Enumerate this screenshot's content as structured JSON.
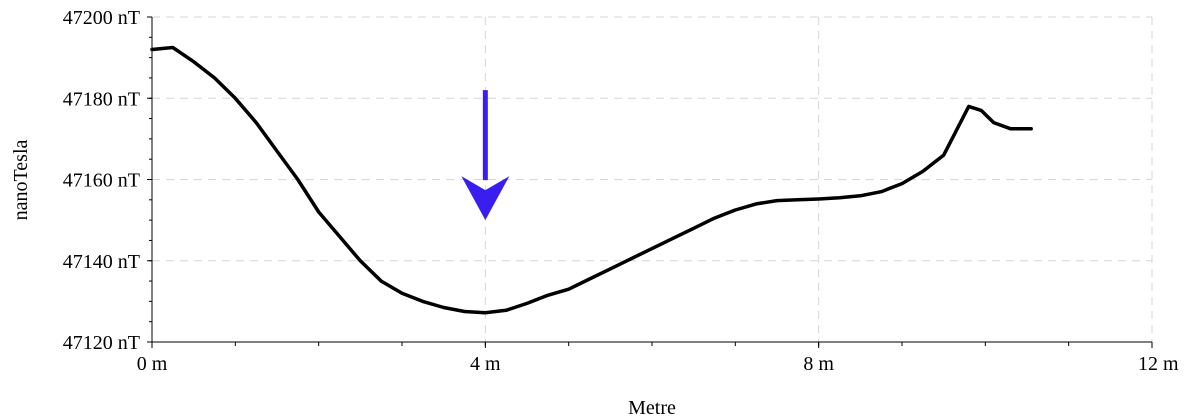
{
  "chart_data": {
    "type": "line",
    "xlabel": "Metre",
    "ylabel": "nanoTesla",
    "xlim": [
      0,
      12
    ],
    "ylim": [
      47120,
      47200
    ],
    "x_ticks": [
      {
        "value": 0,
        "label": "0 m"
      },
      {
        "value": 4,
        "label": "4 m"
      },
      {
        "value": 8,
        "label": "8 m"
      },
      {
        "value": 12,
        "label": "12 m"
      }
    ],
    "y_ticks": [
      {
        "value": 47120,
        "label": "47120 nT"
      },
      {
        "value": 47140,
        "label": "47140 nT"
      },
      {
        "value": 47160,
        "label": "47160 nT"
      },
      {
        "value": 47180,
        "label": "47180 nT"
      },
      {
        "value": 47200,
        "label": "47200 nT"
      }
    ],
    "grid": true,
    "series": [
      {
        "color": "#000000",
        "points": [
          [
            0.0,
            47192
          ],
          [
            0.25,
            47192.5
          ],
          [
            0.5,
            47189
          ],
          [
            0.75,
            47185
          ],
          [
            1.0,
            47180
          ],
          [
            1.25,
            47174
          ],
          [
            1.5,
            47167
          ],
          [
            1.75,
            47160
          ],
          [
            2.0,
            47152
          ],
          [
            2.25,
            47146
          ],
          [
            2.5,
            47140
          ],
          [
            2.75,
            47135
          ],
          [
            3.0,
            47132
          ],
          [
            3.25,
            47130
          ],
          [
            3.5,
            47128.5
          ],
          [
            3.75,
            47127.5
          ],
          [
            4.0,
            47127.2
          ],
          [
            4.25,
            47127.8
          ],
          [
            4.5,
            47129.5
          ],
          [
            4.75,
            47131.5
          ],
          [
            5.0,
            47133
          ],
          [
            5.25,
            47135.5
          ],
          [
            5.5,
            47138
          ],
          [
            5.75,
            47140.5
          ],
          [
            6.0,
            47143
          ],
          [
            6.25,
            47145.5
          ],
          [
            6.5,
            47148
          ],
          [
            6.75,
            47150.5
          ],
          [
            7.0,
            47152.5
          ],
          [
            7.25,
            47154
          ],
          [
            7.5,
            47154.8
          ],
          [
            7.75,
            47155
          ],
          [
            8.0,
            47155.2
          ],
          [
            8.25,
            47155.5
          ],
          [
            8.5,
            47156
          ],
          [
            8.75,
            47157
          ],
          [
            9.0,
            47159
          ],
          [
            9.25,
            47162
          ],
          [
            9.5,
            47166
          ],
          [
            9.65,
            47172
          ],
          [
            9.8,
            47178
          ],
          [
            9.95,
            47177
          ],
          [
            10.1,
            47174
          ],
          [
            10.3,
            47172.5
          ],
          [
            10.55,
            47172.5
          ]
        ]
      }
    ],
    "annotations": [
      {
        "type": "arrow",
        "direction": "down",
        "x": 4,
        "y_from": 47182,
        "y_to": 47150,
        "color": "#3a1ef0"
      }
    ]
  }
}
